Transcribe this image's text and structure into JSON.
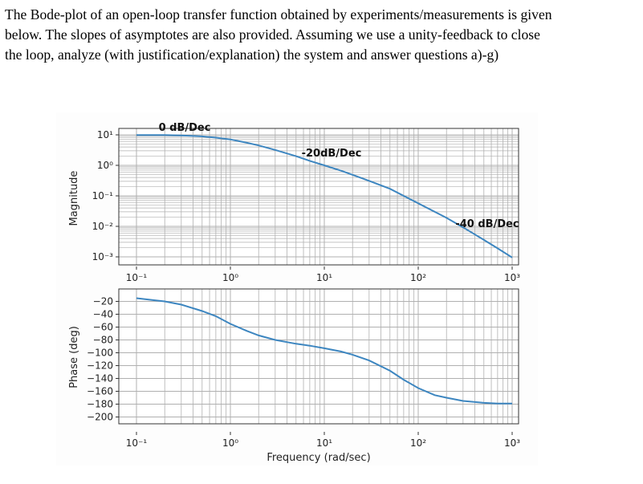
{
  "question": {
    "lines": [
      "The Bode-plot of an open-loop transfer function obtained by experiments/measurements is given",
      "below. The slopes of asymptotes are also provided.  Assuming we use a unity-feedback to close",
      "the loop, analyze (with justification/explanation) the system and answer questions a)-g)"
    ]
  },
  "colors": {
    "curve": "#3d86c0",
    "grid": "#b0b0b0",
    "axes": "#333333"
  },
  "chart_data": [
    {
      "type": "line",
      "panel": "magnitude",
      "ylabel": "Magnitude",
      "xscale": "log",
      "yscale": "log",
      "xlim": [
        0.1,
        1000
      ],
      "ylim": [
        0.001,
        10
      ],
      "xticks": [
        "10⁻¹",
        "10⁰",
        "10¹",
        "10²",
        "10³"
      ],
      "yticks": [
        "10¹",
        "10⁰",
        "10⁻¹",
        "10⁻²",
        "10⁻³"
      ],
      "grid": true,
      "series": [
        {
          "x": [
            0.1,
            0.2,
            0.3,
            0.5,
            0.7,
            1,
            1.5,
            2,
            3,
            5,
            7,
            10,
            15,
            20,
            30,
            50,
            70,
            100,
            150,
            200,
            300,
            500,
            700,
            1000
          ],
          "y": [
            9.9,
            9.8,
            9.6,
            8.9,
            8.1,
            7.1,
            5.5,
            4.5,
            3.2,
            2.0,
            1.4,
            1.0,
            0.67,
            0.49,
            0.31,
            0.17,
            0.1,
            0.057,
            0.03,
            0.019,
            0.0093,
            0.0036,
            0.0019,
            0.00095
          ]
        }
      ],
      "annotations": [
        "0 dB/Dec",
        "-20dB/Dec",
        "-40 dB/Dec"
      ]
    },
    {
      "type": "line",
      "panel": "phase",
      "ylabel": "Phase (deg)",
      "xlabel": "Frequency (rad/sec)",
      "xscale": "log",
      "xlim": [
        0.1,
        1000
      ],
      "ylim": [
        -200,
        -10
      ],
      "xticks": [
        "10⁻¹",
        "10⁰",
        "10¹",
        "10²",
        "10³"
      ],
      "yticks": [
        "−20",
        "−40",
        "−60",
        "−80",
        "−100",
        "−120",
        "−140",
        "−160",
        "−180",
        "−200"
      ],
      "grid": true,
      "series": [
        {
          "x": [
            0.1,
            0.15,
            0.2,
            0.3,
            0.5,
            0.7,
            1,
            1.5,
            2,
            3,
            5,
            7,
            10,
            15,
            20,
            30,
            50,
            70,
            100,
            150,
            200,
            300,
            500,
            700,
            1000
          ],
          "y": [
            -15,
            -18,
            -20,
            -25,
            -35,
            -43,
            -55,
            -66,
            -73,
            -80,
            -86,
            -89,
            -93,
            -98,
            -103,
            -112,
            -128,
            -142,
            -155,
            -166,
            -170,
            -175,
            -178,
            -179,
            -179
          ]
        }
      ]
    }
  ]
}
